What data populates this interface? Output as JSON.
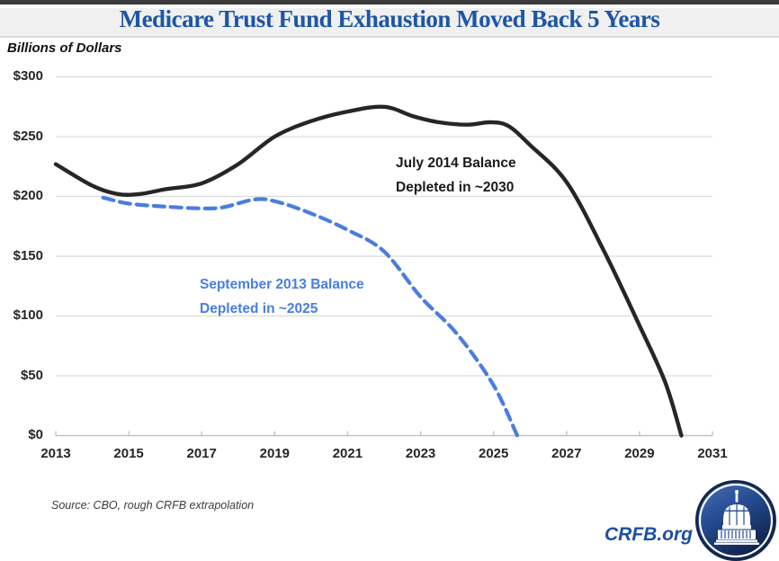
{
  "header": {
    "title": "Medicare Trust Fund Exhaustion Moved Back 5 Years"
  },
  "chart_data": {
    "type": "line",
    "title": "Medicare Trust Fund Exhaustion Moved Back 5 Years",
    "xlabel": "",
    "ylabel": "Billions of Dollars",
    "xlim": [
      2013,
      2031
    ],
    "ylim": [
      0,
      300
    ],
    "grid": true,
    "legend_position": "none",
    "x_ticks": {
      "values": [
        2013,
        2015,
        2017,
        2019,
        2021,
        2023,
        2025,
        2027,
        2029,
        2031
      ],
      "labels": [
        "2013",
        "2015",
        "2017",
        "2019",
        "2021",
        "2023",
        "2025",
        "2027",
        "2029",
        "2031"
      ]
    },
    "y_ticks": {
      "values": [
        0,
        50,
        100,
        150,
        200,
        250,
        300
      ],
      "labels": [
        "$0",
        "$50",
        "$100",
        "$150",
        "$200",
        "$250",
        "$300"
      ]
    },
    "series": [
      {
        "name": "July 2014 Balance",
        "line_style": "solid",
        "color": "#262626",
        "annotation": [
          "July 2014 Balance",
          "Depleted in ~2030"
        ],
        "depletion_year": "~2030",
        "x": [
          2013,
          2014,
          2014.7,
          2015.3,
          2016,
          2017,
          2018,
          2019,
          2020,
          2021,
          2022,
          2022.8,
          2023.5,
          2024.3,
          2024.9,
          2025.4,
          2026,
          2027,
          2028,
          2029,
          2029.7,
          2030.15
        ],
        "y": [
          227,
          209,
          202,
          202,
          206,
          211,
          227,
          250,
          263,
          271,
          275,
          267,
          262,
          260,
          262,
          259,
          243,
          212,
          156,
          92,
          45,
          0
        ]
      },
      {
        "name": "September 2013 Balance",
        "line_style": "dashed",
        "color": "#4a7de0",
        "annotation": [
          "September 2013 Balance",
          "Depleted in ~2025"
        ],
        "depletion_year": "~2025",
        "x": [
          2014.3,
          2015,
          2016,
          2017,
          2017.6,
          2018.45,
          2019,
          2019.9,
          2021,
          2022,
          2023,
          2024,
          2025,
          2025.65
        ],
        "y": [
          199,
          194,
          191.5,
          190,
          191,
          197.5,
          196,
          187,
          172,
          154,
          116,
          85,
          42,
          0
        ]
      }
    ]
  },
  "footer": {
    "source": "Source: CBO, rough CRFB extrapolation",
    "brand": "CRFB.org"
  },
  "icons": {
    "logo": "capitol-icon"
  },
  "colors": {
    "title_blue": "#1d56a5",
    "brand_blue": "#1c4fa0",
    "series_blue": "#4a7de0",
    "series_black": "#262626",
    "gridline": "#dcdcdc",
    "axis_line": "#c4c4c4"
  }
}
